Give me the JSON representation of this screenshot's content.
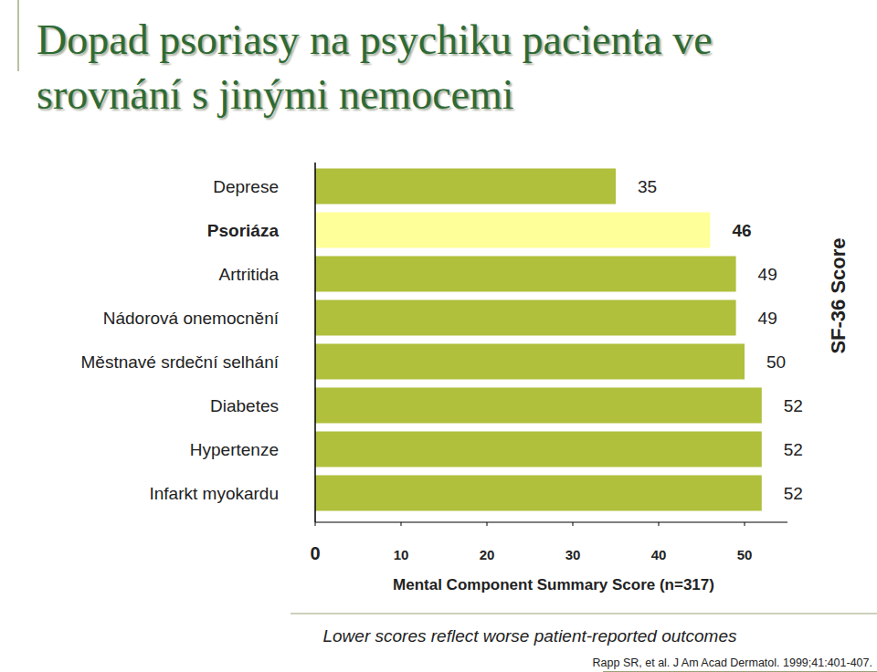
{
  "chart_data": {
    "type": "bar",
    "orientation": "horizontal",
    "title": "Dopad psoriasy na psychiku pacienta ve srovnání s jinými nemocemi",
    "categories": [
      "Deprese",
      "Psoriáza",
      "Artritida",
      "Nádorová onemocnění",
      "Městnavé srdeční selhání",
      "Diabetes",
      "Hypertenze",
      "Infarkt myokardu"
    ],
    "values": [
      35,
      46,
      49,
      49,
      50,
      52,
      52,
      52
    ],
    "colors": [
      "#b0bf3c",
      "#ffff99",
      "#b0bf3c",
      "#b0bf3c",
      "#b0bf3c",
      "#b0bf3c",
      "#b0bf3c",
      "#b0bf3c"
    ],
    "data_labels": true,
    "xlim": [
      0,
      55
    ],
    "xticks": [
      0,
      10,
      20,
      30,
      40,
      50
    ],
    "x_label": "Mental Component Summary Score (n=317)",
    "y_label": "SF-36 Score",
    "annotations": [
      "Lower scores reflect worse patient-reported outcomes",
      "Rapp SR, et al. J Am Acad Dermatol. 1999;41:401-407."
    ],
    "grid": false
  }
}
